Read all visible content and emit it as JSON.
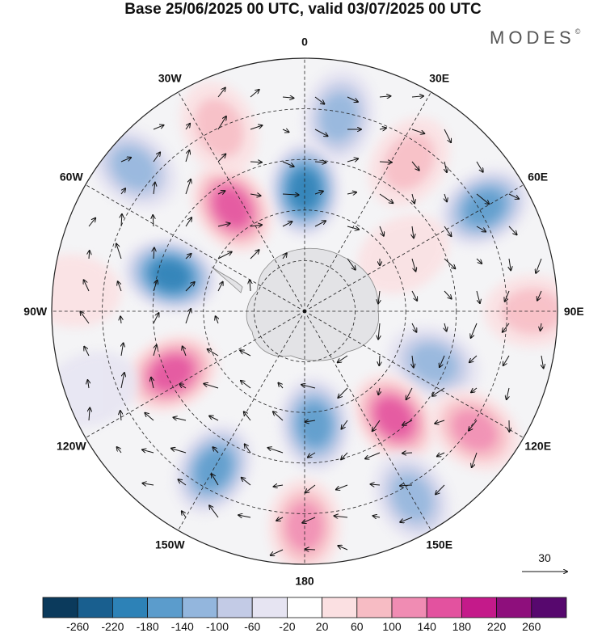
{
  "title": "Base 25/06/2025 00 UTC, valid 03/07/2025 00 UTC",
  "logo": "MODES",
  "logo_mark": "©",
  "longitude_labels": [
    {
      "lon": 0,
      "text": "0"
    },
    {
      "lon": 30,
      "text": "30E"
    },
    {
      "lon": 60,
      "text": "60E"
    },
    {
      "lon": 90,
      "text": "90E"
    },
    {
      "lon": 120,
      "text": "120E"
    },
    {
      "lon": 150,
      "text": "150E"
    },
    {
      "lon": 180,
      "text": "180"
    },
    {
      "lon": -150,
      "text": "150W"
    },
    {
      "lon": -120,
      "text": "120W"
    },
    {
      "lon": -90,
      "text": "90W"
    },
    {
      "lon": -60,
      "text": "60W"
    },
    {
      "lon": -30,
      "text": "30W"
    }
  ],
  "reference_vector": "30",
  "colorbar": {
    "colors": [
      "#0b3a5c",
      "#195f8f",
      "#2d82b7",
      "#5b9ccc",
      "#93b6dd",
      "#c3cbe6",
      "#e6e4f2",
      "#ffffff",
      "#fbe0e2",
      "#f7bcc4",
      "#f08cb3",
      "#e3529f",
      "#c41a8a",
      "#8e0f7c",
      "#57086e"
    ],
    "ticks": [
      "-260",
      "-220",
      "-180",
      "-140",
      "-100",
      "-60",
      "-20",
      "20",
      "60",
      "100",
      "140",
      "180",
      "220",
      "260"
    ]
  },
  "anomalies": [
    {
      "lon": 10,
      "r": 0.78,
      "value": -140
    },
    {
      "lon": 0,
      "r": 0.48,
      "value": -220
    },
    {
      "lon": 35,
      "r": 0.72,
      "value": 100
    },
    {
      "lon": 60,
      "r": 0.82,
      "value": -180
    },
    {
      "lon": 90,
      "r": 0.9,
      "value": 100
    },
    {
      "lon": 112,
      "r": 0.55,
      "value": -140
    },
    {
      "lon": 140,
      "r": 0.55,
      "value": 160
    },
    {
      "lon": 125,
      "r": 0.82,
      "value": 140
    },
    {
      "lon": 150,
      "r": 0.85,
      "value": -140
    },
    {
      "lon": 180,
      "r": 0.85,
      "value": 140
    },
    {
      "lon": 175,
      "r": 0.45,
      "value": -180
    },
    {
      "lon": -150,
      "r": 0.72,
      "value": -180
    },
    {
      "lon": -115,
      "r": 0.58,
      "value": 180
    },
    {
      "lon": -75,
      "r": 0.55,
      "value": -200
    },
    {
      "lon": -35,
      "r": 0.5,
      "value": 180
    },
    {
      "lon": -25,
      "r": 0.8,
      "value": 100
    },
    {
      "lon": -50,
      "r": 0.88,
      "value": -140
    },
    {
      "lon": -85,
      "r": 0.92,
      "value": 60
    },
    {
      "lon": -110,
      "r": 0.9,
      "value": -60
    },
    {
      "lon": 60,
      "r": 0.45,
      "value": 60
    }
  ]
}
